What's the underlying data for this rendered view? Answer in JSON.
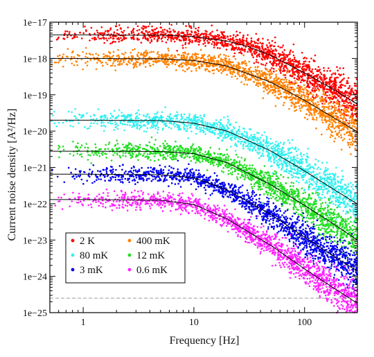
{
  "chart_data": {
    "type": "scatter",
    "title": "",
    "xlabel": "Frequency [Hz]",
    "ylabel": "Current noise density [A²/Hz]",
    "xscale": "log",
    "yscale": "log",
    "xlim": [
      0.5,
      300
    ],
    "ylim": [
      1e-25,
      1e-17
    ],
    "x_ticks": [
      {
        "value": 1,
        "label": "1"
      },
      {
        "value": 10,
        "label": "10"
      },
      {
        "value": 100,
        "label": "100"
      }
    ],
    "y_ticks": [
      {
        "value": 1e-17,
        "label": "1e−17"
      },
      {
        "value": 1e-18,
        "label": "1e−18"
      },
      {
        "value": 1e-19,
        "label": "1e−19"
      },
      {
        "value": 1e-20,
        "label": "1e−20"
      },
      {
        "value": 1e-21,
        "label": "1e−21"
      },
      {
        "value": 1e-22,
        "label": "1e−22"
      },
      {
        "value": 1e-23,
        "label": "1e−23"
      },
      {
        "value": 1e-24,
        "label": "1e−24"
      },
      {
        "value": 1e-25,
        "label": "1e−25"
      }
    ],
    "grid": false,
    "legend_position": "bottom-left",
    "reference_line": {
      "y": 2.5e-25,
      "style": "dashed",
      "color": "#999999"
    },
    "series": [
      {
        "name": "2 K",
        "color": "#ff0000",
        "plateau": 4.5e-18,
        "corner_hz": 30,
        "data_start_hz": 0.5,
        "points": [
          [
            0.5,
            4.5e-18
          ],
          [
            1,
            4.5e-18
          ],
          [
            2,
            4.4e-18
          ],
          [
            5,
            4.4e-18
          ],
          [
            10,
            4e-18
          ],
          [
            20,
            3e-18
          ],
          [
            30,
            2.2e-18
          ],
          [
            50,
            1.2e-18
          ],
          [
            100,
            4e-19
          ],
          [
            200,
            1.2e-19
          ],
          [
            300,
            5.5e-20
          ]
        ]
      },
      {
        "name": "400 mK",
        "color": "#ff8000",
        "plateau": 1e-18,
        "corner_hz": 25,
        "data_start_hz": 0.5,
        "points": [
          [
            0.5,
            1e-18
          ],
          [
            1,
            1e-18
          ],
          [
            5,
            9.8e-19
          ],
          [
            10,
            8.8e-19
          ],
          [
            20,
            6.2e-19
          ],
          [
            50,
            2.2e-19
          ],
          [
            100,
            7e-20
          ],
          [
            200,
            2e-20
          ],
          [
            300,
            9.5e-21
          ]
        ]
      },
      {
        "name": "80 mK",
        "color": "#33f0f0",
        "plateau": 2e-20,
        "corner_hz": 20,
        "data_start_hz": 0.5,
        "points": [
          [
            0.5,
            2e-20
          ],
          [
            1,
            2e-20
          ],
          [
            5,
            1.95e-20
          ],
          [
            10,
            1.65e-20
          ],
          [
            20,
            1e-20
          ],
          [
            50,
            2.8e-21
          ],
          [
            100,
            8e-22
          ],
          [
            200,
            2.1e-22
          ],
          [
            300,
            9.8e-23
          ]
        ]
      },
      {
        "name": "12 mK",
        "color": "#22dd22",
        "plateau": 2.8e-21,
        "corner_hz": 18,
        "data_start_hz": 0.5,
        "points": [
          [
            0.5,
            2.8e-21
          ],
          [
            1,
            2.8e-21
          ],
          [
            5,
            2.75e-21
          ],
          [
            10,
            2.4e-21
          ],
          [
            20,
            1.35e-21
          ],
          [
            50,
            3.3e-22
          ],
          [
            100,
            9e-23
          ],
          [
            200,
            2.3e-23
          ],
          [
            300,
            1e-23
          ]
        ]
      },
      {
        "name": "3 mK",
        "color": "#0000ee",
        "plateau": 6.5e-22,
        "corner_hz": 15,
        "data_start_hz": 0.5,
        "points": [
          [
            0.5,
            6.5e-22
          ],
          [
            1,
            6.5e-22
          ],
          [
            5,
            6.3e-22
          ],
          [
            10,
            5.2e-22
          ],
          [
            20,
            2.4e-22
          ],
          [
            50,
            5e-23
          ],
          [
            100,
            1.2e-23
          ],
          [
            200,
            3e-24
          ],
          [
            300,
            1.4e-24
          ]
        ]
      },
      {
        "name": "0.6 mK",
        "color": "#ff22ff",
        "plateau": 1.3e-22,
        "corner_hz": 12,
        "data_start_hz": 0.5,
        "points": [
          [
            0.5,
            1.3e-22
          ],
          [
            1,
            1.3e-22
          ],
          [
            5,
            1.25e-22
          ],
          [
            10,
            9.5e-23
          ],
          [
            20,
            3.8e-23
          ],
          [
            50,
            7e-24
          ],
          [
            100,
            1.6e-24
          ],
          [
            200,
            4e-25
          ],
          [
            300,
            1.8e-25
          ]
        ]
      }
    ]
  }
}
